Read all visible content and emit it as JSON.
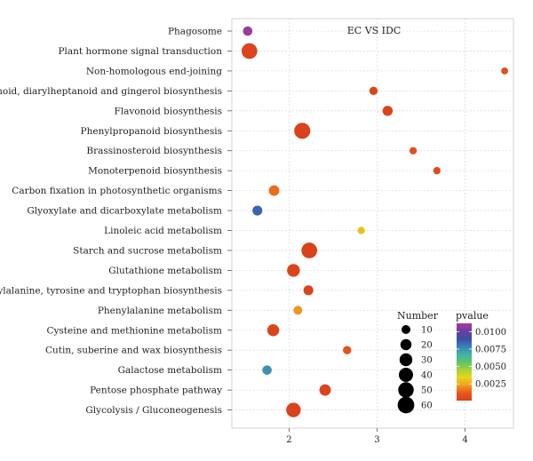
{
  "chart_data": {
    "type": "scatter",
    "title": "EC VS IDC",
    "xlabel": "",
    "ylabel": "",
    "xlim": [
      1.35,
      4.55
    ],
    "xticks": [
      2,
      3,
      4
    ],
    "grid": true,
    "points": [
      {
        "term": "Phagosome",
        "x": 1.53,
        "number": 12,
        "pvalue": 0.011
      },
      {
        "term": "Plant hormone signal transduction",
        "x": 1.55,
        "number": 52,
        "pvalue": 0.0003
      },
      {
        "term": "Non-homologous end-joining",
        "x": 4.45,
        "number": 4,
        "pvalue": 0.0007
      },
      {
        "term": "Stilbenoid, diarylheptanoid and gingerol biosynthesis",
        "x": 2.96,
        "number": 8,
        "pvalue": 0.0004
      },
      {
        "term": "Flavonoid biosynthesis",
        "x": 3.12,
        "number": 15,
        "pvalue": 0.0003
      },
      {
        "term": "Phenylpropanoid biosynthesis",
        "x": 2.15,
        "number": 55,
        "pvalue": 0.0002
      },
      {
        "term": "Brassinosteroid biosynthesis",
        "x": 3.41,
        "number": 5,
        "pvalue": 0.0008
      },
      {
        "term": "Monoterpenoid biosynthesis",
        "x": 3.68,
        "number": 5,
        "pvalue": 0.0006
      },
      {
        "term": "Carbon fixation in photosynthetic organisms",
        "x": 1.83,
        "number": 17,
        "pvalue": 0.0015
      },
      {
        "term": "Glyoxylate and dicarboxylate metabolism",
        "x": 1.64,
        "number": 14,
        "pvalue": 0.0085
      },
      {
        "term": "Linoleic acid metabolism",
        "x": 2.82,
        "number": 5,
        "pvalue": 0.003
      },
      {
        "term": "Starch and sucrose metabolism",
        "x": 2.23,
        "number": 52,
        "pvalue": 0.0002
      },
      {
        "term": "Glutathione metabolism",
        "x": 2.05,
        "number": 30,
        "pvalue": 0.0003
      },
      {
        "term": "Phenylalanine, tyrosine and tryptophan biosynthesis",
        "x": 2.22,
        "number": 14,
        "pvalue": 0.0003
      },
      {
        "term": "Phenylalanine metabolism",
        "x": 2.1,
        "number": 10,
        "pvalue": 0.0022
      },
      {
        "term": "Cysteine and methionine metabolism",
        "x": 1.82,
        "number": 25,
        "pvalue": 0.0004
      },
      {
        "term": "Cutin, suberine and wax biosynthesis",
        "x": 2.66,
        "number": 8,
        "pvalue": 0.001
      },
      {
        "term": "Galactose metabolism",
        "x": 1.75,
        "number": 12,
        "pvalue": 0.0075
      },
      {
        "term": "Pentose phosphate pathway",
        "x": 2.41,
        "number": 22,
        "pvalue": 0.0003
      },
      {
        "term": "Glycolysis / Gluconeogenesis",
        "x": 2.05,
        "number": 42,
        "pvalue": 0.0002
      }
    ],
    "size_legend": {
      "title": "Number",
      "values": [
        10,
        20,
        30,
        40,
        50,
        60
      ]
    },
    "color_legend": {
      "title": "pvalue",
      "ticks": [
        0.01,
        0.0075,
        0.005,
        0.0025
      ],
      "tick_labels": [
        "0.0100",
        "0.0075",
        "0.0050",
        "0.0025"
      ],
      "range": [
        0.0001,
        0.0112
      ],
      "colors_high_to_low": [
        "#a63a9e",
        "#6a3fa0",
        "#3c4fa6",
        "#3a7fb8",
        "#3fb3a8",
        "#5cc36a",
        "#a6d03a",
        "#e8d51a",
        "#f0a020",
        "#e8581a",
        "#d8401c"
      ]
    }
  }
}
